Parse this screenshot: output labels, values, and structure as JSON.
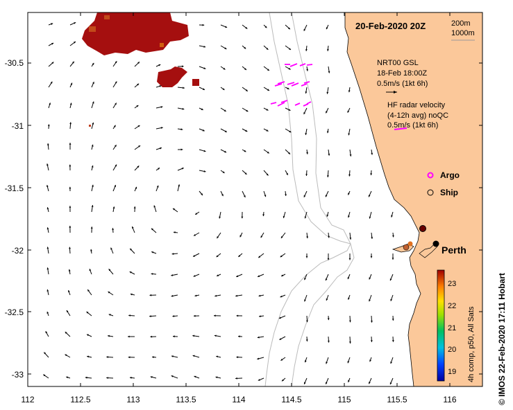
{
  "map": {
    "title": "20-Feb-2020 20Z",
    "contours": [
      "200m",
      "1000m"
    ],
    "x_ticks": [
      "112",
      "112.5",
      "113",
      "113.5",
      "114",
      "114.5",
      "115",
      "115.5",
      "116"
    ],
    "y_ticks": [
      "-30.5",
      "-31",
      "-31.5",
      "-32",
      "-32.5",
      "-33"
    ],
    "city": "Perth"
  },
  "legend": {
    "gsl_line1": "NRT00 GSL",
    "gsl_line2": "18-Feb 18:00Z",
    "gsl_scale": "0.5m/s (1kt 6h)",
    "hf_line1": "HF radar velocity",
    "hf_line2": "(4-12h avg) noQC",
    "hf_scale": "0.5m/s (1kt 6h)",
    "argo": "Argo",
    "ship": "Ship"
  },
  "colorbar": {
    "label": "4h comp, p50, All Sats",
    "ticks": [
      "23",
      "22",
      "21",
      "20",
      "19"
    ],
    "range": [
      18.7,
      23.7
    ]
  },
  "credit": "© IMOS 22-Feb-2020 17:11 Hobart",
  "colors": {
    "land": "#fbc89a",
    "sst_high": "#a50f0f",
    "hf_arrow": "#ff00ff",
    "argo": "#ff00ff"
  }
}
